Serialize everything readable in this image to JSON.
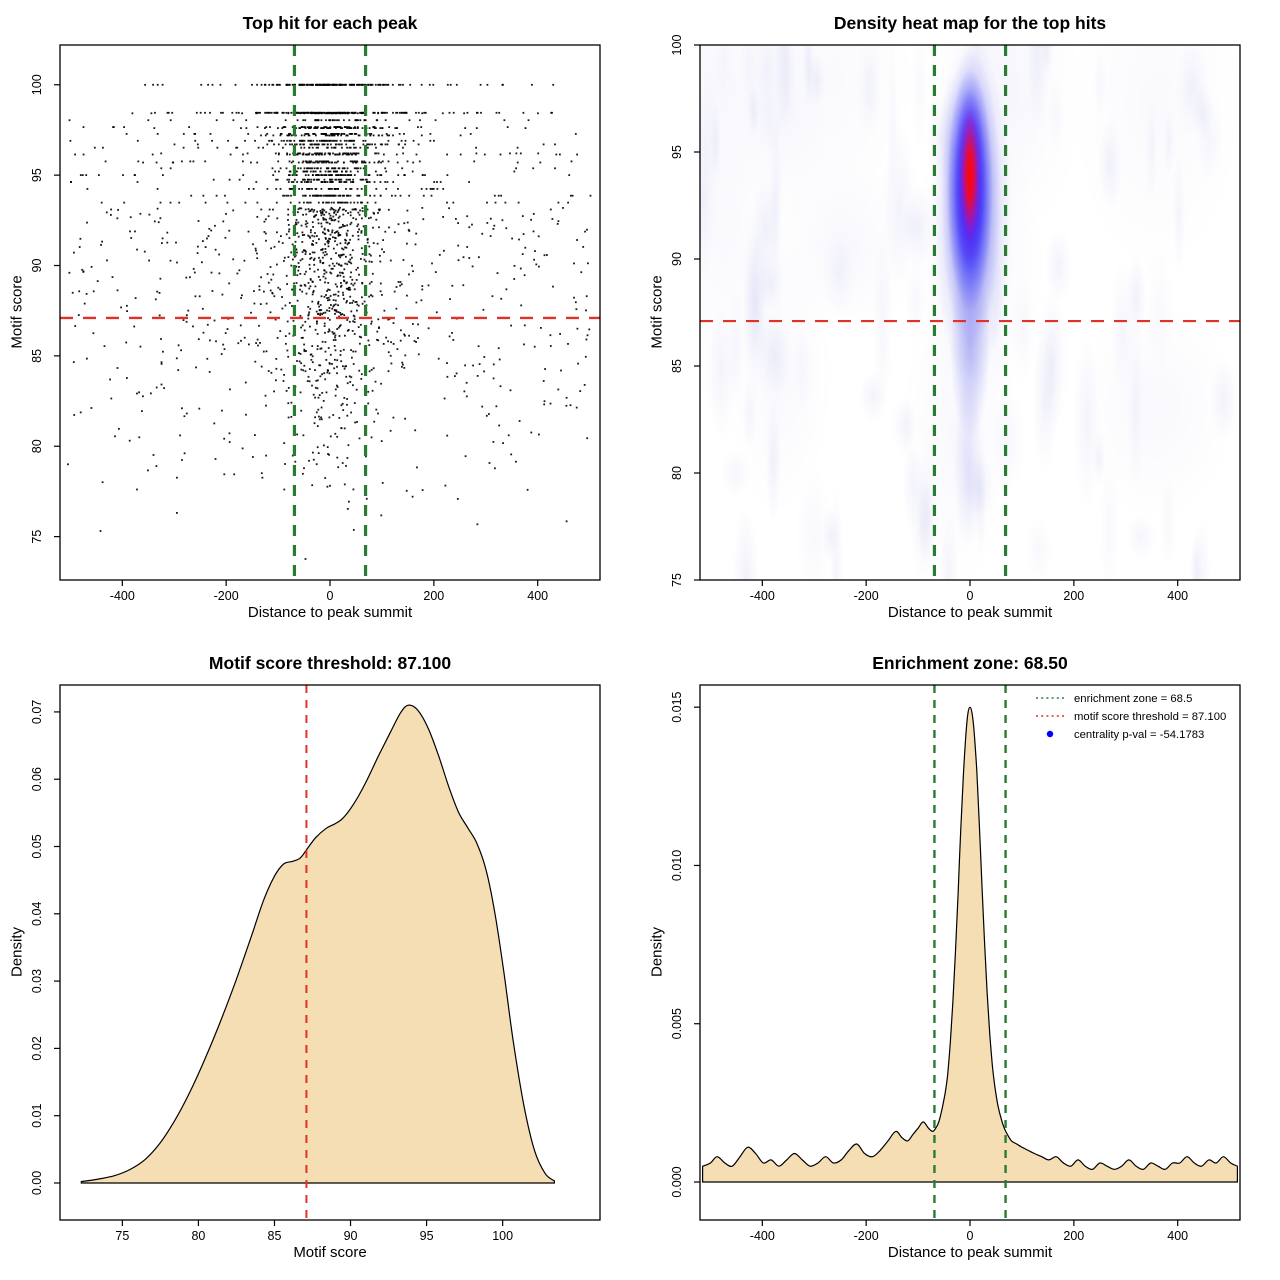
{
  "figure": {
    "background": "#ffffff",
    "rows": 2,
    "columns": 2
  },
  "colors": {
    "threshold_red": "#e03227",
    "zone_green": "#287d32",
    "density_fill": "#f5deb3",
    "pval_blue": "#0000ff",
    "point_black": "#000000",
    "heat_core_red": "#ff0500",
    "heat_blue": "#2222fa"
  },
  "values": {
    "motif_score_threshold": "87.100",
    "enrichment_zone": "68.50",
    "centrality_pval": "-54.1783"
  },
  "chart_data": [
    {
      "id": "top-hit-scatter",
      "type": "scatter",
      "title": "Top hit for each peak",
      "xlabel": "Distance to peak summit",
      "ylabel": "Motif score",
      "xlim": [
        -520,
        520
      ],
      "ylim": [
        72.6,
        102.2
      ],
      "xticks": [
        -400,
        -200,
        0,
        200,
        400
      ],
      "xtick_labels": [
        "-400",
        "-200",
        "0",
        "200",
        "400"
      ],
      "yticks": [
        75,
        80,
        85,
        90,
        95,
        100
      ],
      "ytick_labels": [
        "75",
        "80",
        "85",
        "90",
        "95",
        "100"
      ],
      "lines": [
        {
          "axis": "y",
          "value": 87.1,
          "color": "#e03227",
          "width": 2.4,
          "dash": "13,10",
          "name": "motif-score-threshold-line"
        },
        {
          "axis": "x",
          "value": -68.5,
          "color": "#287d32",
          "width": 3.2,
          "dash": "11,9",
          "name": "enrichment-zone-line-left"
        },
        {
          "axis": "x",
          "value": 68.5,
          "color": "#287d32",
          "width": 3.2,
          "dash": "11,9",
          "name": "enrichment-zone-line-right"
        }
      ],
      "points_summary": "~2600 black points: dense cluster centered at distance 0 spanning scores 83-100 with horizontal bands at discrete high scores (100, 98.45, 97.6, 97.2, 96.7, 96.2, 95.7, 95.2, 94.75); sparse background scattered across ±500 at scores 74-98",
      "generator": {
        "seed": 7,
        "cluster": {
          "n": 1500,
          "x_sigma_narrow": 40,
          "x_sigma_wide": 115
        },
        "background": {
          "n": 620,
          "x_range": [
            -505,
            505
          ]
        },
        "bands": [
          {
            "y": 100,
            "n": 60,
            "sx": 75
          },
          {
            "y": 98.45,
            "n": 115,
            "sx": 100
          },
          {
            "y": 97.6,
            "n": 55,
            "sx": 70
          },
          {
            "y": 97.2,
            "n": 45,
            "sx": 60
          },
          {
            "y": 96.7,
            "n": 55,
            "sx": 65
          },
          {
            "y": 96.2,
            "n": 50,
            "sx": 60
          },
          {
            "y": 95.7,
            "n": 45,
            "sx": 55
          },
          {
            "y": 95.2,
            "n": 40,
            "sx": 55
          },
          {
            "y": 94.75,
            "n": 40,
            "sx": 50
          }
        ]
      }
    },
    {
      "id": "density-heatmap",
      "type": "heatmap",
      "title": "Density heat map for the top hits",
      "xlabel": "Distance to peak summit",
      "ylabel": "Motif score",
      "xlim": [
        -520,
        520
      ],
      "ylim": [
        75,
        100
      ],
      "xticks": [
        -400,
        -200,
        0,
        200,
        400
      ],
      "xtick_labels": [
        "-400",
        "-200",
        "0",
        "200",
        "400"
      ],
      "yticks": [
        75,
        80,
        85,
        90,
        95,
        100
      ],
      "ytick_labels": [
        "75",
        "80",
        "85",
        "90",
        "95",
        "100"
      ],
      "lines": [
        {
          "axis": "y",
          "value": 87.1,
          "color": "#e03227",
          "width": 2.2,
          "dash": "13,10",
          "name": "motif-score-threshold-line"
        },
        {
          "axis": "x",
          "value": -68.5,
          "color": "#287d32",
          "width": 3.2,
          "dash": "11,9",
          "name": "enrichment-zone-line-left"
        },
        {
          "axis": "x",
          "value": 68.5,
          "color": "#287d32",
          "width": 3.2,
          "dash": "11,9",
          "name": "enrichment-zone-line-right"
        }
      ],
      "hotspot": {
        "x": 0,
        "y": 93.9,
        "note": "red core ~scores 91-97 at distance 0, purple/blue halo scores 84-100 within ±40, faint blue tail down to ~79"
      },
      "background_texture": {
        "streaks": 85,
        "seed": 11,
        "color": "#a8a8e8"
      },
      "colormap": [
        "#ffffff",
        "#aaaaee",
        "#2222fa",
        "#7800eb",
        "#ff0500"
      ]
    },
    {
      "id": "motif-score-density",
      "type": "area",
      "title": "Motif score threshold: 87.100",
      "xlabel": "Motif score",
      "ylabel": "Density",
      "xlim": [
        70.9,
        106.4
      ],
      "ylim": [
        -0.0055,
        0.074
      ],
      "xticks": [
        75,
        80,
        85,
        90,
        95,
        100
      ],
      "xtick_labels": [
        "75",
        "80",
        "85",
        "90",
        "95",
        "100"
      ],
      "yticks": [
        0,
        0.01,
        0.02,
        0.03,
        0.04,
        0.05,
        0.06,
        0.07
      ],
      "ytick_labels": [
        "0.00",
        "0.01",
        "0.02",
        "0.03",
        "0.04",
        "0.05",
        "0.06",
        "0.07"
      ],
      "fill": "#f5deb3",
      "lines": [
        {
          "axis": "x",
          "value": 87.1,
          "color": "#e03227",
          "width": 2,
          "dash": "8,7",
          "name": "motif-score-threshold-line"
        }
      ],
      "curve": [
        [
          72.3,
          0.0002
        ],
        [
          73.5,
          0.0006
        ],
        [
          74.5,
          0.0011
        ],
        [
          75.5,
          0.002
        ],
        [
          76.5,
          0.0035
        ],
        [
          77.5,
          0.006
        ],
        [
          78.5,
          0.0095
        ],
        [
          79.5,
          0.0138
        ],
        [
          80.5,
          0.0188
        ],
        [
          81.5,
          0.0243
        ],
        [
          82.5,
          0.0303
        ],
        [
          83.5,
          0.0368
        ],
        [
          84.3,
          0.0421
        ],
        [
          85,
          0.0456
        ],
        [
          85.6,
          0.0474
        ],
        [
          86.2,
          0.0478
        ],
        [
          86.7,
          0.0483
        ],
        [
          87.1,
          0.0495
        ],
        [
          87.7,
          0.0513
        ],
        [
          88.4,
          0.0527
        ],
        [
          89,
          0.0534
        ],
        [
          89.5,
          0.0542
        ],
        [
          90.2,
          0.0563
        ],
        [
          91,
          0.0595
        ],
        [
          91.8,
          0.0633
        ],
        [
          92.6,
          0.0669
        ],
        [
          93.3,
          0.0699
        ],
        [
          93.8,
          0.071
        ],
        [
          94.4,
          0.0703
        ],
        [
          95.1,
          0.0676
        ],
        [
          95.8,
          0.0634
        ],
        [
          96.5,
          0.0586
        ],
        [
          97.1,
          0.0551
        ],
        [
          97.7,
          0.0528
        ],
        [
          98.3,
          0.0505
        ],
        [
          98.9,
          0.0466
        ],
        [
          99.5,
          0.04
        ],
        [
          100.1,
          0.031
        ],
        [
          100.7,
          0.021
        ],
        [
          101.4,
          0.0115
        ],
        [
          102.1,
          0.0048
        ],
        [
          102.8,
          0.0014
        ],
        [
          103.4,
          0.0003
        ]
      ]
    },
    {
      "id": "distance-density",
      "type": "area",
      "title": "Enrichment zone: 68.50",
      "xlabel": "Distance to peak summit",
      "ylabel": "Density",
      "xlim": [
        -520,
        520
      ],
      "ylim": [
        -0.0012,
        0.0157
      ],
      "xticks": [
        -400,
        -200,
        0,
        200,
        400
      ],
      "xtick_labels": [
        "-400",
        "-200",
        "0",
        "200",
        "400"
      ],
      "yticks": [
        0,
        0.005,
        0.01,
        0.015
      ],
      "ytick_labels": [
        "0.000",
        "0.005",
        "0.010",
        "0.015"
      ],
      "fill": "#f5deb3",
      "lines": [
        {
          "axis": "x",
          "value": -68.5,
          "color": "#287d32",
          "width": 2.4,
          "dash": "8,7",
          "name": "enrichment-zone-line-left"
        },
        {
          "axis": "x",
          "value": 68.5,
          "color": "#287d32",
          "width": 2.4,
          "dash": "8,7",
          "name": "enrichment-zone-line-right"
        }
      ],
      "legend": {
        "items": [
          {
            "label": "enrichment zone = 68.5",
            "color": "#287d32",
            "marker": "dotted-line"
          },
          {
            "label": "motif score threshold = 87.100",
            "color": "#e03227",
            "marker": "dotted-line"
          },
          {
            "label": "centrality p-val = -54.1783",
            "color": "#0000ff",
            "marker": "point"
          }
        ]
      },
      "curve": [
        [
          -515,
          0.0005
        ],
        [
          -500,
          0.0006
        ],
        [
          -487,
          0.0008
        ],
        [
          -472,
          0.0006
        ],
        [
          -458,
          0.0005
        ],
        [
          -443,
          0.0008
        ],
        [
          -428,
          0.0011
        ],
        [
          -413,
          0.0009
        ],
        [
          -398,
          0.0006
        ],
        [
          -383,
          0.0007
        ],
        [
          -368,
          0.0005
        ],
        [
          -353,
          0.0007
        ],
        [
          -338,
          0.0009
        ],
        [
          -323,
          0.0007
        ],
        [
          -308,
          0.0005
        ],
        [
          -293,
          0.0006
        ],
        [
          -278,
          0.0008
        ],
        [
          -263,
          0.0006
        ],
        [
          -248,
          0.0007
        ],
        [
          -233,
          0.001
        ],
        [
          -218,
          0.0012
        ],
        [
          -203,
          0.0009
        ],
        [
          -188,
          0.0008
        ],
        [
          -173,
          0.001
        ],
        [
          -158,
          0.0013
        ],
        [
          -143,
          0.0016
        ],
        [
          -131,
          0.0014
        ],
        [
          -120,
          0.0013
        ],
        [
          -110,
          0.0015
        ],
        [
          -100,
          0.0017
        ],
        [
          -90,
          0.0019
        ],
        [
          -80,
          0.0017
        ],
        [
          -72,
          0.0016
        ],
        [
          -66,
          0.0017
        ],
        [
          -60,
          0.0019
        ],
        [
          -54,
          0.0023
        ],
        [
          -48,
          0.0028
        ],
        [
          -43,
          0.0034
        ],
        [
          -38,
          0.0044
        ],
        [
          -33,
          0.0057
        ],
        [
          -28,
          0.0073
        ],
        [
          -23,
          0.0091
        ],
        [
          -18,
          0.0111
        ],
        [
          -13,
          0.0128
        ],
        [
          -8,
          0.0141
        ],
        [
          -4,
          0.0148
        ],
        [
          0,
          0.015
        ],
        [
          4,
          0.0148
        ],
        [
          8,
          0.0142
        ],
        [
          13,
          0.013
        ],
        [
          18,
          0.0113
        ],
        [
          23,
          0.0094
        ],
        [
          28,
          0.0076
        ],
        [
          33,
          0.006
        ],
        [
          38,
          0.0047
        ],
        [
          43,
          0.0037
        ],
        [
          48,
          0.003
        ],
        [
          54,
          0.0024
        ],
        [
          60,
          0.002
        ],
        [
          66,
          0.0017
        ],
        [
          72,
          0.0015
        ],
        [
          80,
          0.0013
        ],
        [
          90,
          0.0012
        ],
        [
          100,
          0.0011
        ],
        [
          112,
          0.001
        ],
        [
          124,
          0.0009
        ],
        [
          138,
          0.0008
        ],
        [
          152,
          0.0007
        ],
        [
          166,
          0.0008
        ],
        [
          180,
          0.0006
        ],
        [
          194,
          0.0005
        ],
        [
          208,
          0.0007
        ],
        [
          222,
          0.0005
        ],
        [
          236,
          0.0004
        ],
        [
          250,
          0.0006
        ],
        [
          264,
          0.0005
        ],
        [
          278,
          0.0004
        ],
        [
          292,
          0.0005
        ],
        [
          306,
          0.0007
        ],
        [
          320,
          0.0005
        ],
        [
          334,
          0.0004
        ],
        [
          348,
          0.0006
        ],
        [
          362,
          0.0005
        ],
        [
          376,
          0.0004
        ],
        [
          390,
          0.0006
        ],
        [
          404,
          0.0006
        ],
        [
          418,
          0.0008
        ],
        [
          432,
          0.0006
        ],
        [
          446,
          0.0005
        ],
        [
          460,
          0.0007
        ],
        [
          474,
          0.0006
        ],
        [
          488,
          0.0008
        ],
        [
          502,
          0.0006
        ],
        [
          515,
          0.0005
        ]
      ]
    }
  ]
}
